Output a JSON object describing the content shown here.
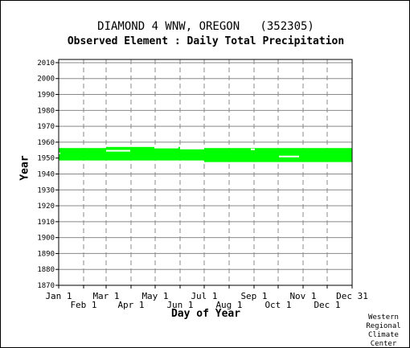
{
  "station_title": "DIAMOND 4 WNW, OREGON   (352305)",
  "element_title": "Observed Element : Daily Total Precipitation",
  "credit": [
    "Western",
    "Regional",
    "Climate",
    "Center"
  ],
  "colors": {
    "data_fill": "#00ff00",
    "missing": "#ffffff",
    "grid_solid": "#888888",
    "grid_dashed": "#888888",
    "axis": "#000000"
  },
  "chart_data": {
    "type": "heatmap",
    "title": "Observed Element : Daily Total Precipitation",
    "xlabel": "Day of Year",
    "ylabel": "Year",
    "xlim": [
      1,
      366
    ],
    "ylim": [
      1870,
      2012
    ],
    "y_ticks": [
      "2010",
      "2000",
      "1990",
      "1980",
      "1970",
      "1960",
      "1950",
      "1940",
      "1930",
      "1920",
      "1910",
      "1900",
      "1890",
      "1880",
      "1870"
    ],
    "x_ticks_upper": [
      {
        "label": "Jan 1",
        "day": 1
      },
      {
        "label": "Mar 1",
        "day": 60
      },
      {
        "label": "May 1",
        "day": 121
      },
      {
        "label": "Jul 1",
        "day": 182
      },
      {
        "label": "Sep 1",
        "day": 244
      },
      {
        "label": "Nov 1",
        "day": 305
      },
      {
        "label": "Dec 31",
        "day": 366
      }
    ],
    "x_ticks_lower": [
      {
        "label": "Feb 1",
        "day": 32
      },
      {
        "label": "Apr 1",
        "day": 91
      },
      {
        "label": "Jun 1",
        "day": 152
      },
      {
        "label": "Aug 1",
        "day": 213
      },
      {
        "label": "Oct 1",
        "day": 274
      },
      {
        "label": "Dec 1",
        "day": 335
      }
    ],
    "data_blocks": [
      {
        "day_start": 1,
        "day_end": 60,
        "year_start": 1948.5,
        "year_end": 1956.3
      },
      {
        "day_start": 60,
        "day_end": 152,
        "year_start": 1948.5,
        "year_end": 1957.0
      },
      {
        "day_start": 152,
        "day_end": 182,
        "year_start": 1948.5,
        "year_end": 1956.3
      },
      {
        "day_start": 182,
        "day_end": 366,
        "year_start": 1947.5,
        "year_end": 1956.3
      }
    ],
    "missing_marks": [
      {
        "day_start": 1,
        "day_end": 3,
        "year": 1953.0
      },
      {
        "day_start": 60,
        "day_end": 90,
        "year": 1954.6
      },
      {
        "day_start": 120,
        "day_end": 150,
        "year": 1956.6
      },
      {
        "day_start": 152,
        "day_end": 182,
        "year": 1956.0
      },
      {
        "day_start": 240,
        "day_end": 245,
        "year": 1955.5
      },
      {
        "day_start": 275,
        "day_end": 300,
        "year": 1951.0
      }
    ]
  }
}
